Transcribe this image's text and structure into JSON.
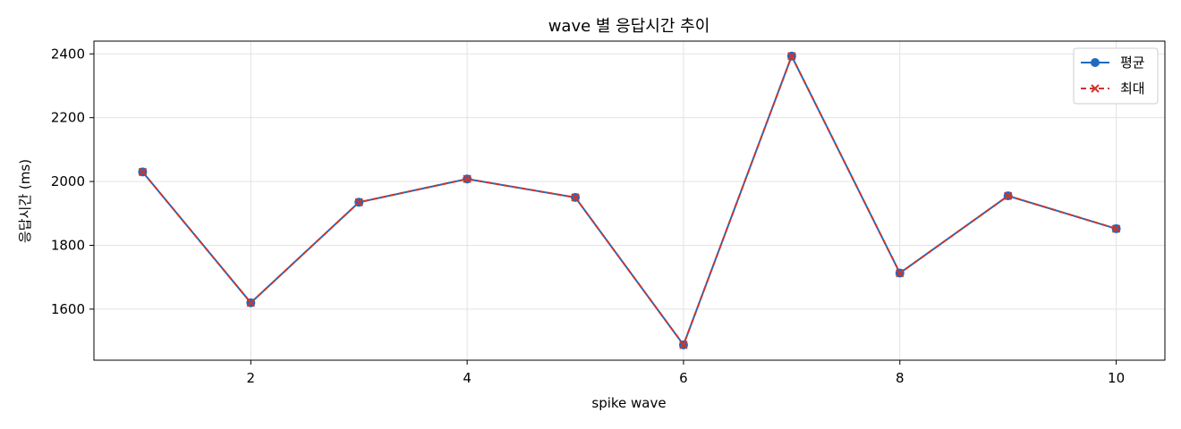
{
  "chart_data": {
    "type": "line",
    "title": "wave 별 응답시간 추이",
    "xlabel": "spike wave",
    "ylabel": "응답시간 (ms)",
    "x": [
      1,
      2,
      3,
      4,
      5,
      6,
      7,
      8,
      9,
      10
    ],
    "xlim": [
      0.55,
      10.45
    ],
    "ylim": [
      1440,
      2440
    ],
    "xticks": [
      2,
      4,
      6,
      8,
      10
    ],
    "yticks": [
      1600,
      1800,
      2000,
      2200,
      2400
    ],
    "grid": true,
    "legend_position": "top-right",
    "series": [
      {
        "name": "평균",
        "values": [
          2030,
          1620,
          1935,
          2008,
          1950,
          1488,
          2393,
          1713,
          1955,
          1852
        ],
        "color": "#1f6bbf",
        "line_style": "solid",
        "marker": "circle"
      },
      {
        "name": "최대",
        "values": [
          2030,
          1620,
          1935,
          2008,
          1950,
          1488,
          2393,
          1713,
          1955,
          1852
        ],
        "color": "#d0352b",
        "line_style": "dashed",
        "marker": "x"
      }
    ]
  }
}
